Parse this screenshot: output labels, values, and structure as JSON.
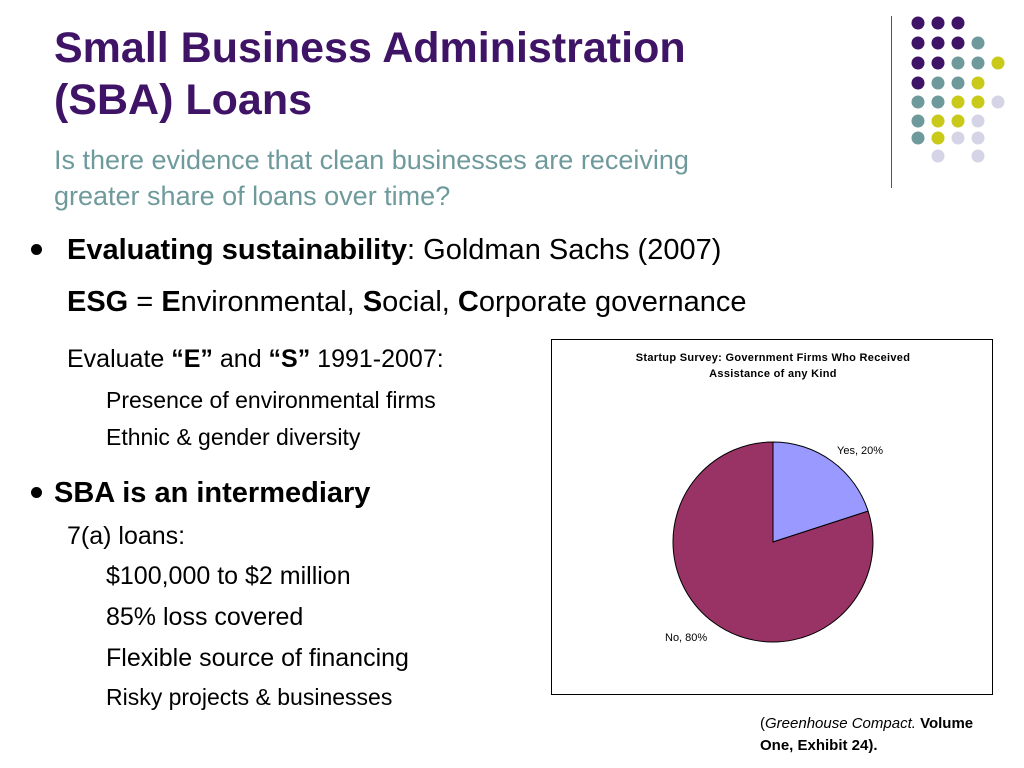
{
  "slide": {
    "title_line1": "Small Business Administration",
    "title_line2": "(SBA) Loans",
    "subtitle_line1": "Is there evidence that clean businesses are receiving",
    "subtitle_line2": "greater share of loans over time?"
  },
  "colors": {
    "title": "#3f1466",
    "subtitle": "#6f9a9c",
    "dot_purple": "#3f1466",
    "dot_teal": "#6f9a9c",
    "dot_yellow": "#c9c91a",
    "dot_lavender": "#d4d4e6",
    "pie_yes": "#9999ff",
    "pie_no": "#993366"
  },
  "content": {
    "b1_bold": "Evaluating sustainability",
    "b1_rest": ": Goldman Sachs (2007)",
    "esg_bold": "ESG",
    "esg_eq": " = ",
    "esg_e": "E",
    "esg_e_rest": "nvironmental, ",
    "esg_s": "S",
    "esg_s_rest": "ocial, ",
    "esg_c": "C",
    "esg_c_rest": "orporate governance",
    "eval_a": "Evaluate ",
    "eval_e": "“E”",
    "eval_and": " and ",
    "eval_s": "“S”",
    "eval_years": " 1991-2007:",
    "sub1": "Presence of environmental firms",
    "sub2": "Ethnic & gender diversity",
    "b2": "SBA is an intermediary",
    "loans": "7(a) loans:",
    "l_item1": "$100,000 to $2 million",
    "l_item2": "85% loss covered",
    "l_item3": "Flexible source of financing",
    "l_item4": "Risky projects & businesses"
  },
  "source": {
    "open": "(",
    "italic": "Greenhouse Compact.",
    "bold1": " Volume",
    "bold2": "One, Exhibit 24)."
  },
  "chart_data": {
    "type": "pie",
    "title_line1": "Startup Survey: Government Firms Who Received",
    "title_line2": "Assistance of any Kind",
    "slices": [
      {
        "label": "Yes, 20%",
        "value": 20,
        "color": "#9999ff"
      },
      {
        "label": "No, 80%",
        "value": 80,
        "color": "#993366"
      }
    ]
  }
}
